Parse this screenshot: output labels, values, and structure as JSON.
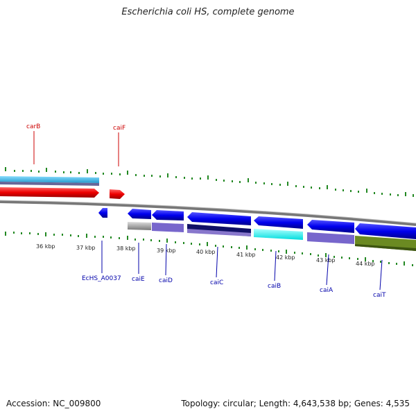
{
  "title": "Escherichia coli HS, complete genome",
  "footer": {
    "accession": "Accession: NC_009800",
    "summary": "Topology: circular; Length: 4,643,538 bp; Genes: 4,535"
  },
  "scale_labels": [
    "36 kbp",
    "37 kbp",
    "38 kbp",
    "39 kbp",
    "40 kbp",
    "41 kbp",
    "42 kbp",
    "43 kbp",
    "44 kbp"
  ],
  "genes_top": [
    {
      "name": "carB",
      "color": "#cc0000"
    },
    {
      "name": "caiF",
      "color": "#cc0000"
    }
  ],
  "genes_bottom": [
    {
      "name": "EcHS_A0037",
      "color": "#0000aa"
    },
    {
      "name": "caiE",
      "color": "#0000aa"
    },
    {
      "name": "caiD",
      "color": "#0000aa"
    },
    {
      "name": "caiC",
      "color": "#0000aa"
    },
    {
      "name": "caiB",
      "color": "#0000aa"
    },
    {
      "name": "caiA",
      "color": "#0000aa"
    },
    {
      "name": "caiT",
      "color": "#0000aa"
    }
  ],
  "colors": {
    "forward_gene": "#ee0000",
    "reverse_gene": "#0000ee",
    "tick": "#228822",
    "backbone": "#888888",
    "upper_band": "#33bbee"
  }
}
